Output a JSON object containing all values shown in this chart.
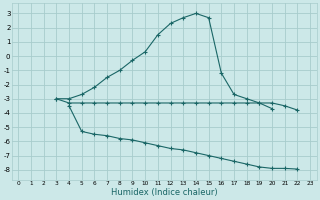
{
  "xlabel": "Humidex (Indice chaleur)",
  "bg_color": "#cce8e8",
  "grid_color": "#a8cccc",
  "line_color": "#1a6666",
  "xlim": [
    -0.5,
    23.5
  ],
  "ylim": [
    -8.7,
    3.7
  ],
  "yticks": [
    3,
    2,
    1,
    0,
    -1,
    -2,
    -3,
    -4,
    -5,
    -6,
    -7,
    -8
  ],
  "xticks": [
    0,
    1,
    2,
    3,
    4,
    5,
    6,
    7,
    8,
    9,
    10,
    11,
    12,
    13,
    14,
    15,
    16,
    17,
    18,
    19,
    20,
    21,
    22,
    23
  ],
  "curve1_x": [
    3,
    4,
    5,
    6,
    7,
    8,
    9,
    10,
    11,
    12,
    13,
    14,
    15,
    16,
    17,
    18,
    19,
    20
  ],
  "curve1_y": [
    -3.0,
    -3.0,
    -2.7,
    -2.2,
    -1.5,
    -1.0,
    -0.3,
    0.3,
    1.5,
    2.3,
    2.7,
    3.0,
    2.7,
    -1.2,
    -2.7,
    -3.0,
    -3.3,
    -3.7
  ],
  "curve2_x": [
    3,
    4,
    5,
    6,
    7,
    8,
    9,
    10,
    11,
    12,
    13,
    14,
    15,
    16,
    17,
    18,
    19,
    20,
    21,
    22
  ],
  "curve2_y": [
    -3.0,
    -3.3,
    -3.3,
    -3.3,
    -3.3,
    -3.3,
    -3.3,
    -3.3,
    -3.3,
    -3.3,
    -3.3,
    -3.3,
    -3.3,
    -3.3,
    -3.3,
    -3.3,
    -3.3,
    -3.3,
    -3.5,
    -3.8
  ],
  "curve3_x": [
    4,
    5,
    6,
    7,
    8,
    9,
    10,
    11,
    12,
    13,
    14,
    15,
    16,
    17,
    18,
    19,
    20,
    21,
    22
  ],
  "curve3_y": [
    -3.5,
    -5.3,
    -5.5,
    -5.6,
    -5.8,
    -5.9,
    -6.1,
    -6.3,
    -6.5,
    -6.6,
    -6.8,
    -7.0,
    -7.2,
    -7.4,
    -7.6,
    -7.8,
    -7.9,
    -7.9,
    -7.95
  ]
}
